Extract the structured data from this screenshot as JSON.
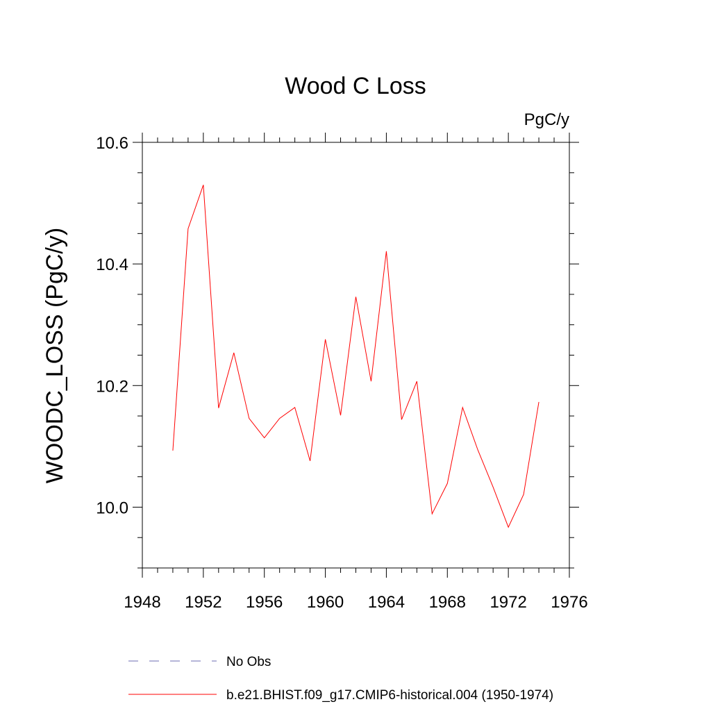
{
  "chart_data": {
    "type": "line",
    "title": "Wood C Loss",
    "units_label": "PgC/y",
    "ylabel": "WOODC_LOSS  (PgC/y)",
    "xlabel": "",
    "xlim": [
      1948,
      1976
    ],
    "ylim": [
      9.9,
      10.6
    ],
    "x_ticks": [
      1948,
      1952,
      1956,
      1960,
      1964,
      1968,
      1972,
      1976
    ],
    "y_ticks": [
      10.0,
      10.2,
      10.4,
      10.6
    ],
    "y_tick_labels": [
      "10.0",
      "10.2",
      "10.4",
      "10.6"
    ],
    "grid": false,
    "legend_position": "bottom",
    "legend": [
      {
        "name": "No Obs",
        "color": "#6b6bb0",
        "style": "dashed"
      },
      {
        "name": "b.e21.BHIST.f09_g17.CMIP6-historical.004 (1950-1974)",
        "color": "#ff0000",
        "style": "solid"
      }
    ],
    "series": [
      {
        "name": "b.e21.BHIST.f09_g17.CMIP6-historical.004 (1950-1974)",
        "color": "#ff0000",
        "x": [
          1950,
          1951,
          1952,
          1953,
          1954,
          1955,
          1956,
          1957,
          1958,
          1959,
          1960,
          1961,
          1962,
          1963,
          1964,
          1965,
          1966,
          1967,
          1968,
          1969,
          1970,
          1971,
          1972,
          1973,
          1974
        ],
        "y": [
          10.093,
          10.458,
          10.53,
          10.163,
          10.254,
          10.146,
          10.114,
          10.146,
          10.164,
          10.076,
          10.276,
          10.151,
          10.346,
          10.207,
          10.421,
          10.144,
          10.207,
          9.989,
          10.039,
          10.164,
          10.094,
          10.033,
          9.967,
          10.021,
          10.173
        ]
      }
    ]
  }
}
